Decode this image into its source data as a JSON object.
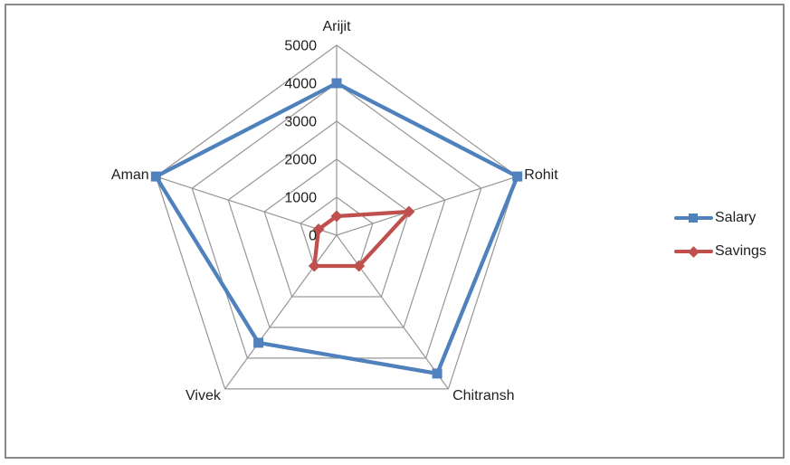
{
  "chart_data": {
    "type": "radar",
    "title": "",
    "categories": [
      "Arijit",
      "Rohit",
      "Chitransh",
      "Vivek",
      "Aman"
    ],
    "series": [
      {
        "name": "Salary",
        "values": [
          4000,
          5000,
          4500,
          3500,
          5000
        ],
        "color": "#4F81BD",
        "marker": "square"
      },
      {
        "name": "Savings",
        "values": [
          500,
          2000,
          1000,
          1000,
          500
        ],
        "color": "#C0504D",
        "marker": "diamond"
      }
    ],
    "axis": {
      "min": 0,
      "max": 5000,
      "step": 1000,
      "tick_labels": [
        "0",
        "1000",
        "2000",
        "3000",
        "4000",
        "5000"
      ]
    },
    "gridline_color": "#969696",
    "label_color": "#1f1f1f",
    "legend_position": "right",
    "grid": true
  }
}
